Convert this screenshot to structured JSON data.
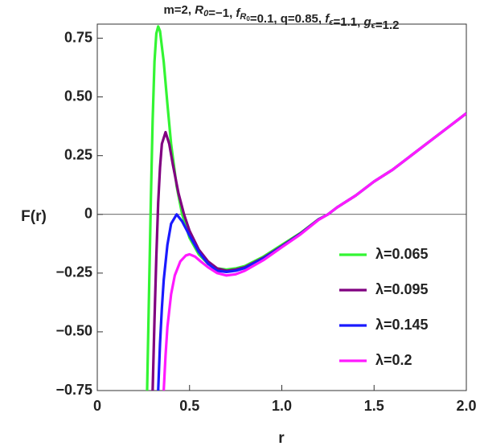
{
  "chart_data": {
    "type": "line",
    "title_runs": [
      {
        "text": "m=2, "
      },
      {
        "text": "R",
        "sub": "0"
      },
      {
        "text": "=−1, "
      },
      {
        "text": "f",
        "sub": "R"
      },
      {
        "text": "=0.1, q=0.85, "
      },
      {
        "text": "f",
        "sub": "ϵ"
      },
      {
        "text": "=1.1, "
      },
      {
        "text": "g",
        "sub": "ϵ"
      },
      {
        "text": "=1.2"
      }
    ],
    "title_subsub": "0",
    "xlabel": "r",
    "ylabel": "F(r)",
    "xlim": [
      0,
      2
    ],
    "ylim": [
      -0.75,
      0.81
    ],
    "xticks": [
      0,
      0.5,
      {
        "value": 1,
        "label": "1.0"
      },
      1.5,
      {
        "value": 2,
        "label": "2.0"
      }
    ],
    "yticks": [
      {
        "value": -0.75,
        "label": "−0.75"
      },
      {
        "value": -0.5,
        "label": "−0.50"
      },
      {
        "value": -0.25,
        "label": "−0.25"
      },
      0,
      0.25,
      {
        "value": 0.5,
        "label": "0.50"
      },
      0.75
    ],
    "hline": 0,
    "legend": "lower right",
    "series": [
      {
        "name": "λ=0.065",
        "color": "#33f533",
        "x": [
          0.27,
          0.28,
          0.29,
          0.3,
          0.31,
          0.32,
          0.33,
          0.34,
          0.36,
          0.38,
          0.4,
          0.43,
          0.46,
          0.5,
          0.55,
          0.6,
          0.65,
          0.7,
          0.75,
          0.8,
          0.9,
          1.0,
          1.1,
          1.2,
          1.25,
          1.3,
          1.4,
          1.5,
          1.6,
          1.7,
          1.8,
          1.9,
          2.0
        ],
        "values": [
          -0.75,
          -0.35,
          0.05,
          0.4,
          0.65,
          0.77,
          0.8,
          0.78,
          0.65,
          0.47,
          0.3,
          0.12,
          0.0,
          -0.1,
          -0.17,
          -0.21,
          -0.23,
          -0.235,
          -0.23,
          -0.22,
          -0.18,
          -0.13,
          -0.08,
          -0.02,
          0.0,
          0.03,
          0.08,
          0.14,
          0.19,
          0.25,
          0.31,
          0.37,
          0.43
        ]
      },
      {
        "name": "λ=0.095",
        "color": "#800080",
        "x": [
          0.3,
          0.31,
          0.32,
          0.33,
          0.34,
          0.35,
          0.37,
          0.39,
          0.41,
          0.44,
          0.47,
          0.5,
          0.55,
          0.6,
          0.65,
          0.7,
          0.75,
          0.8,
          0.9,
          1.0,
          1.1,
          1.2,
          1.25,
          1.3,
          1.4,
          1.5,
          1.6,
          1.7,
          1.8,
          1.9,
          2.0
        ],
        "values": [
          -0.75,
          -0.45,
          -0.18,
          0.05,
          0.2,
          0.3,
          0.35,
          0.3,
          0.21,
          0.09,
          0.0,
          -0.07,
          -0.15,
          -0.2,
          -0.23,
          -0.24,
          -0.235,
          -0.225,
          -0.185,
          -0.135,
          -0.082,
          -0.021,
          0.0,
          0.03,
          0.08,
          0.14,
          0.19,
          0.25,
          0.31,
          0.37,
          0.43
        ]
      },
      {
        "name": "λ=0.145",
        "color": "#1a1aff",
        "x": [
          0.33,
          0.34,
          0.35,
          0.36,
          0.38,
          0.4,
          0.43,
          0.46,
          0.5,
          0.55,
          0.6,
          0.65,
          0.7,
          0.75,
          0.8,
          0.9,
          1.0,
          1.1,
          1.2,
          1.25,
          1.3,
          1.4,
          1.5,
          1.6,
          1.7,
          1.8,
          1.9,
          2.0
        ],
        "values": [
          -0.75,
          -0.55,
          -0.4,
          -0.28,
          -0.13,
          -0.04,
          0.0,
          -0.03,
          -0.09,
          -0.16,
          -0.21,
          -0.24,
          -0.245,
          -0.24,
          -0.228,
          -0.188,
          -0.137,
          -0.084,
          -0.022,
          0.0,
          0.03,
          0.08,
          0.14,
          0.19,
          0.25,
          0.31,
          0.37,
          0.43
        ]
      },
      {
        "name": "λ=0.2",
        "color": "#ff1aff",
        "x": [
          0.36,
          0.37,
          0.38,
          0.4,
          0.42,
          0.45,
          0.48,
          0.5,
          0.53,
          0.56,
          0.6,
          0.65,
          0.7,
          0.75,
          0.8,
          0.9,
          1.0,
          1.1,
          1.2,
          1.25,
          1.3,
          1.4,
          1.5,
          1.6,
          1.7,
          1.8,
          1.9,
          2.0
        ],
        "values": [
          -0.75,
          -0.6,
          -0.48,
          -0.34,
          -0.26,
          -0.2,
          -0.175,
          -0.17,
          -0.18,
          -0.2,
          -0.225,
          -0.25,
          -0.26,
          -0.255,
          -0.24,
          -0.195,
          -0.14,
          -0.086,
          -0.023,
          0.0,
          0.03,
          0.08,
          0.14,
          0.19,
          0.25,
          0.31,
          0.37,
          0.43
        ]
      }
    ]
  }
}
